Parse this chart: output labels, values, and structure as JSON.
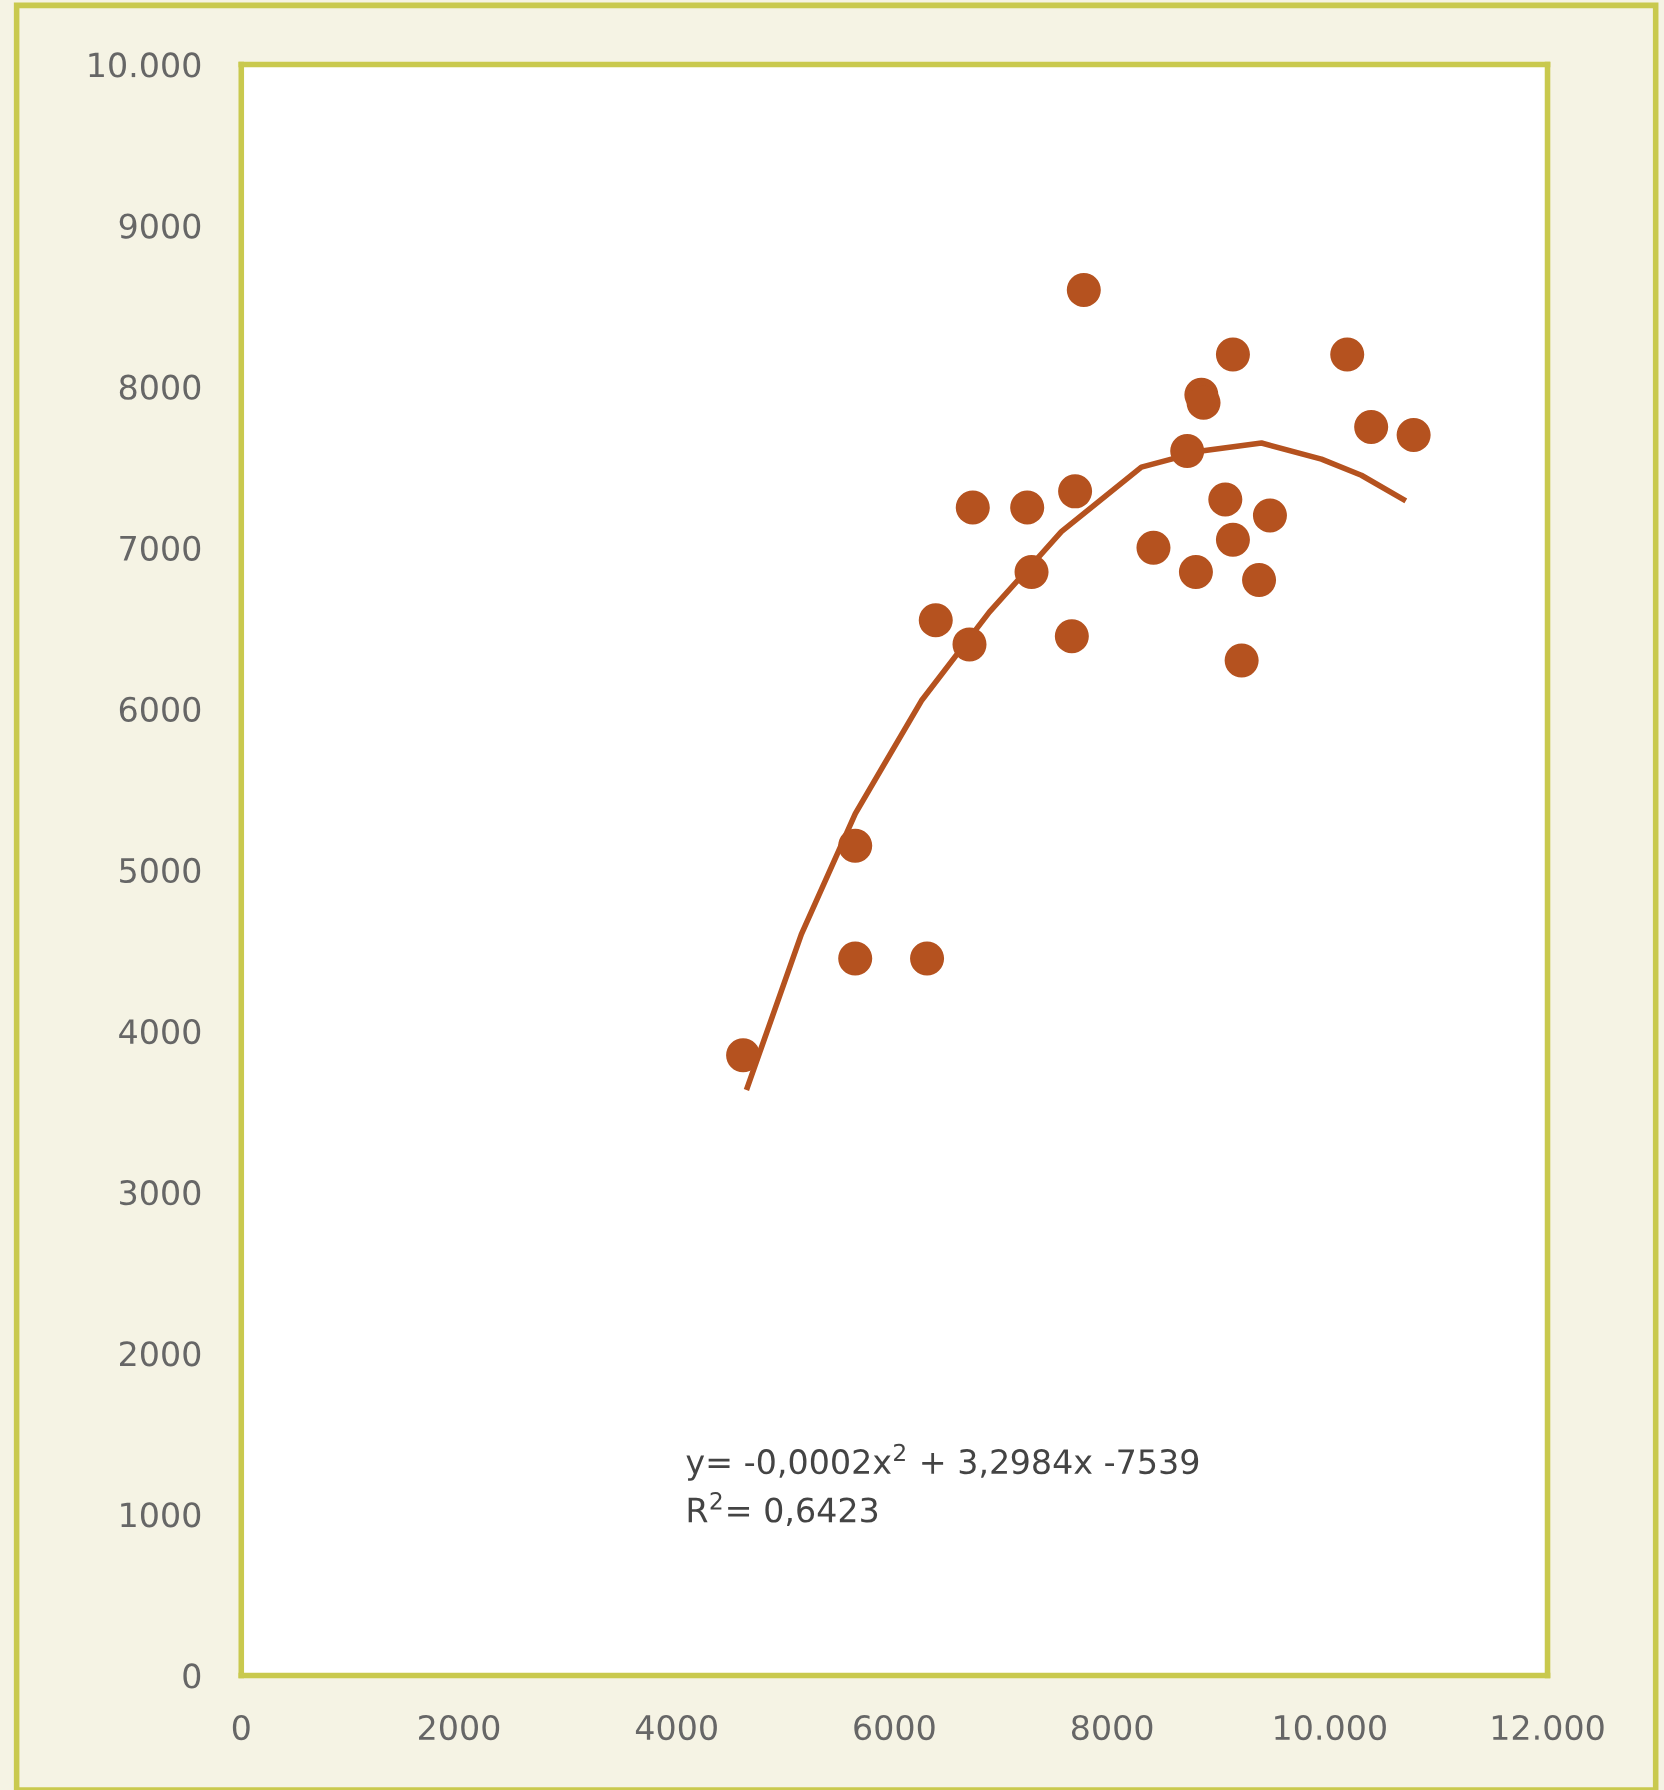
{
  "chart_data": {
    "type": "scatter",
    "xlim": [
      0,
      12000
    ],
    "ylim": [
      0,
      10000
    ],
    "xticks": [
      0,
      2000,
      4000,
      6000,
      8000,
      {
        "value": 10000,
        "label": "10.000"
      },
      {
        "value": 12000,
        "label": "12.000"
      }
    ],
    "yticks": [
      0,
      1000,
      2000,
      3000,
      4000,
      5000,
      6000,
      7000,
      8000,
      9000,
      {
        "value": 10000,
        "label": "10.000"
      }
    ],
    "grid": false,
    "legend": false,
    "annotations": [
      "y= -0,0002x$^{2}$ + 3,2984x -7539",
      "R$^{2}$= 0,6423"
    ],
    "series": [
      {
        "color": "#b5521f",
        "marker": "circle",
        "x": [
          4610,
          5640,
          5640,
          6300,
          6380,
          6690,
          6720,
          7220,
          7260,
          7630,
          7660,
          7740,
          8380,
          8690,
          8770,
          8820,
          8840,
          9110,
          9040,
          9110,
          9190,
          9350,
          9450,
          10160,
          10380,
          10770
        ],
        "values": [
          3850,
          5150,
          4450,
          4450,
          6550,
          6400,
          7250,
          7250,
          6850,
          6450,
          7350,
          8600,
          7000,
          7600,
          6850,
          7950,
          7900,
          8200,
          7300,
          7050,
          6300,
          6800,
          7200,
          8200,
          7750,
          7700
        ]
      },
      {
        "type": "line",
        "color": "#b5521f",
        "marker": "none",
        "line_style": "solid",
        "x": [
          4649,
          5145,
          5641,
          6248,
          6872,
          7534,
          8269,
          8820,
          9372,
          9923,
          10290,
          10676
        ],
        "values": [
          3650,
          4600,
          5350,
          6050,
          6600,
          7100,
          7500,
          7600,
          7650,
          7550,
          7450,
          7300
        ]
      }
    ]
  }
}
